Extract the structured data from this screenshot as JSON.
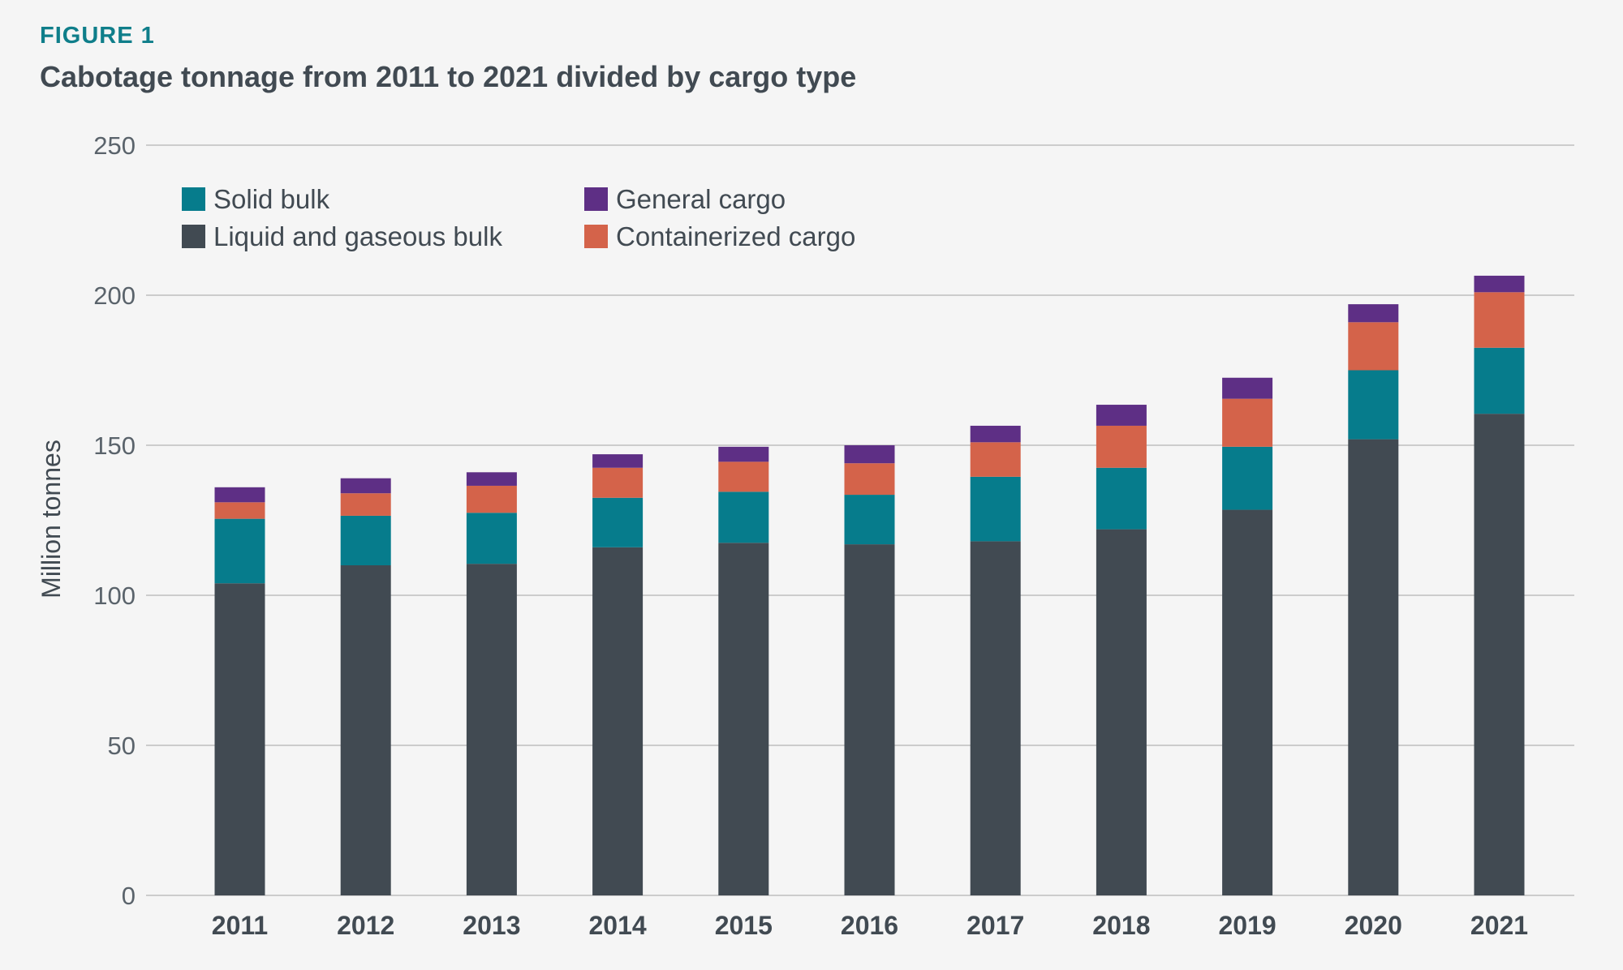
{
  "figure_label": "FIGURE 1",
  "title": "Cabotage tonnage from 2011 to 2021 divided by cargo type",
  "colors": {
    "liquid": "#414a52",
    "solid": "#067c8c",
    "containerized": "#d4634a",
    "general": "#5e2f85",
    "grid": "#cccccc",
    "background": "#f5f5f5"
  },
  "chart_data": {
    "type": "bar",
    "stacked": true,
    "title": "Cabotage tonnage from 2011 to 2021 divided by cargo type",
    "xlabel": "",
    "ylabel": "Million tonnes",
    "ylim": [
      0,
      250
    ],
    "yticks": [
      0,
      50,
      100,
      150,
      200,
      250
    ],
    "grid": true,
    "legend_position": "top-left",
    "categories": [
      "2011",
      "2012",
      "2013",
      "2014",
      "2015",
      "2016",
      "2017",
      "2018",
      "2019",
      "2020",
      "2021"
    ],
    "series": [
      {
        "name": "Liquid and gaseous bulk",
        "color": "#414a52",
        "values": [
          104,
          110,
          110.5,
          116,
          117.5,
          117,
          118,
          122,
          128.5,
          152,
          160.5
        ]
      },
      {
        "name": "Solid bulk",
        "color": "#067c8c",
        "values": [
          21.5,
          16.5,
          17,
          16.5,
          17,
          16.5,
          21.5,
          20.5,
          21,
          23,
          22
        ]
      },
      {
        "name": "Containerized cargo",
        "color": "#d4634a",
        "values": [
          5.5,
          7.5,
          9,
          10,
          10,
          10.5,
          11.5,
          14,
          16,
          16,
          18.5
        ]
      },
      {
        "name": "General cargo",
        "color": "#5e2f85",
        "values": [
          5,
          5,
          4.5,
          4.5,
          5,
          6,
          5.5,
          7,
          7,
          6,
          5.5
        ]
      }
    ],
    "legend": [
      {
        "name": "Solid bulk",
        "color": "#067c8c"
      },
      {
        "name": "General cargo",
        "color": "#5e2f85"
      },
      {
        "name": "Liquid and gaseous bulk",
        "color": "#414a52"
      },
      {
        "name": "Containerized cargo",
        "color": "#d4634a"
      }
    ]
  }
}
